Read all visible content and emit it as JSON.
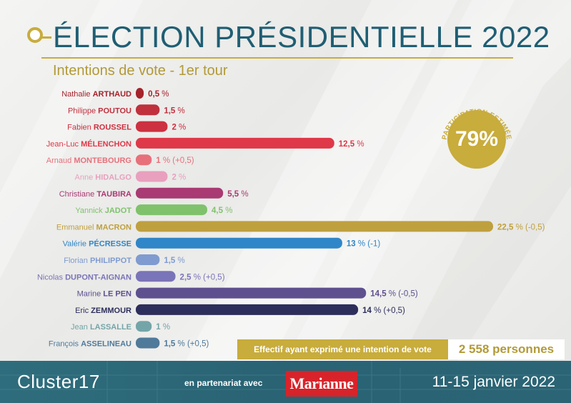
{
  "header": {
    "title": "ÉLECTION PRÉSIDENTIELLE 2022",
    "subtitle": "Intentions de vote - 1er tour"
  },
  "participation": {
    "label": "PARTICIPATION ESTIMÉE",
    "value": "79%"
  },
  "sample": {
    "label": "Effectif ayant exprimé une intention de vote",
    "value": "2 558 personnes"
  },
  "footer": {
    "brand": "Cluster17",
    "partner_text": "en partenariat avec",
    "partner_logo": "Marianne",
    "dates": "11-15 janvier 2022"
  },
  "colors": {
    "title": "#1f5e73",
    "gold": "#c8ac3c",
    "footer": "#2b6575"
  },
  "chart_data": {
    "type": "bar",
    "orientation": "horizontal",
    "unit": "%",
    "xlim": [
      0,
      22.5
    ],
    "bars": [
      {
        "first": "Nathalie",
        "last": "ARTHAUD",
        "value": 0.5,
        "label": "0,5",
        "change": "",
        "color": "#a5232b"
      },
      {
        "first": "Philippe",
        "last": "POUTOU",
        "value": 1.5,
        "label": "1,5",
        "change": "",
        "color": "#c0303d"
      },
      {
        "first": "Fabien",
        "last": "ROUSSEL",
        "value": 2,
        "label": "2",
        "change": "",
        "color": "#cd3040"
      },
      {
        "first": "Jean-Luc",
        "last": "MÉLENCHON",
        "value": 12.5,
        "label": "12,5",
        "change": "",
        "color": "#df3848"
      },
      {
        "first": "Arnaud",
        "last": "MONTEBOURG",
        "value": 1,
        "label": "1",
        "change": "(+0,5)",
        "color": "#e8707a"
      },
      {
        "first": "Anne",
        "last": "HIDALGO",
        "value": 2,
        "label": "2",
        "change": "",
        "color": "#e8a0be"
      },
      {
        "first": "Christiane",
        "last": "TAUBIRA",
        "value": 5.5,
        "label": "5,5",
        "change": "",
        "color": "#a93a73"
      },
      {
        "first": "Yannick",
        "last": "JADOT",
        "value": 4.5,
        "label": "4,5",
        "change": "",
        "color": "#7fc26b"
      },
      {
        "first": "Emmanuel",
        "last": "MACRON",
        "value": 22.5,
        "label": "22,5",
        "change": "(-0,5)",
        "color": "#bfa03e"
      },
      {
        "first": "Valérie",
        "last": "PÉCRESSE",
        "value": 13,
        "label": "13",
        "change": "(-1)",
        "color": "#2f86c8"
      },
      {
        "first": "Florian",
        "last": "PHILIPPOT",
        "value": 1.5,
        "label": "1,5",
        "change": "",
        "color": "#7f9bd0"
      },
      {
        "first": "Nicolas",
        "last": "DUPONT-AIGNAN",
        "value": 2.5,
        "label": "2,5",
        "change": "(+0,5)",
        "color": "#7a74b8"
      },
      {
        "first": "Marine",
        "last": "LE PEN",
        "value": 14.5,
        "label": "14,5",
        "change": "(-0,5)",
        "color": "#5e4f8f"
      },
      {
        "first": "Eric",
        "last": "ZEMMOUR",
        "value": 14,
        "label": "14",
        "change": "(+0,5)",
        "color": "#2e2e5c"
      },
      {
        "first": "Jean",
        "last": "LASSALLE",
        "value": 1,
        "label": "1",
        "change": "",
        "color": "#73a5a8"
      },
      {
        "first": "François",
        "last": "ASSELINEAU",
        "value": 1.5,
        "label": "1,5",
        "change": "(+0,5)",
        "color": "#4f7a9a"
      }
    ]
  }
}
